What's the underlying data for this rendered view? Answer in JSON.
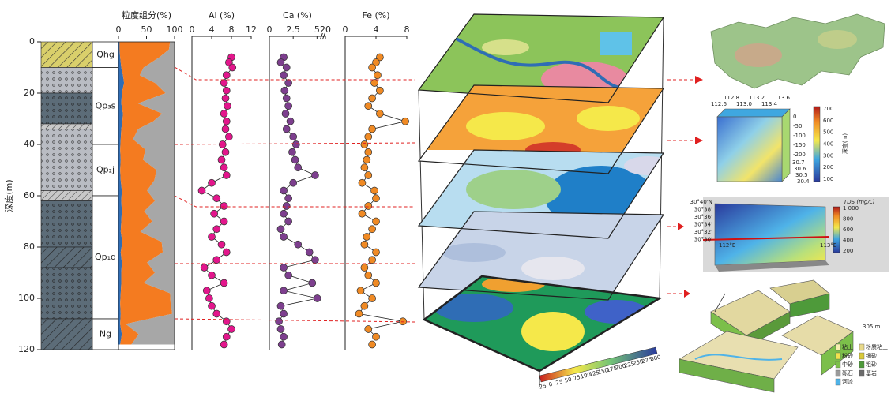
{
  "chart_data": [
    {
      "type": "lithology",
      "ylabel": "深度(m)",
      "ylim": [
        0,
        120
      ],
      "yticks": [
        0,
        20,
        40,
        60,
        80,
        100,
        120
      ],
      "layers": [
        {
          "top": 0,
          "bottom": 10,
          "fill": "hatch-yellow"
        },
        {
          "top": 10,
          "bottom": 20,
          "fill": "dots-light"
        },
        {
          "top": 20,
          "bottom": 32,
          "fill": "dots-dark"
        },
        {
          "top": 32,
          "bottom": 34,
          "fill": "hatch-grey"
        },
        {
          "top": 34,
          "bottom": 58,
          "fill": "dots-light"
        },
        {
          "top": 58,
          "bottom": 62,
          "fill": "hatch-grey"
        },
        {
          "top": 62,
          "bottom": 80,
          "fill": "dots-dark"
        },
        {
          "top": 80,
          "bottom": 88,
          "fill": "hatch-dark"
        },
        {
          "top": 88,
          "bottom": 108,
          "fill": "dots-dark"
        },
        {
          "top": 108,
          "bottom": 120,
          "fill": "hatch-dark"
        }
      ],
      "units": [
        {
          "label": "Qhg",
          "top": 0,
          "bottom": 10
        },
        {
          "label": "Qp₃s",
          "top": 10,
          "bottom": 40
        },
        {
          "label": "Qp₂j",
          "top": 40,
          "bottom": 60
        },
        {
          "label": "Qp₁d",
          "top": 60,
          "bottom": 108
        },
        {
          "label": "Ng",
          "top": 108,
          "bottom": 120
        }
      ]
    },
    {
      "type": "stacked-area",
      "title": "粒度组分(%)",
      "xlim": [
        0,
        100
      ],
      "xticks": [
        0,
        50,
        100
      ],
      "depth": [
        0,
        3,
        6,
        10,
        13,
        16,
        20,
        24,
        28,
        31,
        34,
        38,
        42,
        46,
        50,
        54,
        58,
        62,
        66,
        70,
        74,
        78,
        82,
        86,
        90,
        94,
        98,
        102,
        106,
        110,
        114,
        118
      ],
      "series": [
        {
          "color": "#2f6db5",
          "values": [
            2,
            2,
            3,
            5,
            8,
            10,
            6,
            5,
            8,
            7,
            5,
            4,
            3,
            4,
            3,
            4,
            6,
            5,
            6,
            5,
            4,
            7,
            4,
            6,
            5,
            5,
            4,
            3,
            4,
            3,
            6,
            3
          ]
        },
        {
          "color": "#f47b20",
          "values": [
            90,
            88,
            70,
            40,
            30,
            55,
            78,
            30,
            70,
            55,
            30,
            22,
            45,
            40,
            65,
            60,
            45,
            60,
            40,
            55,
            35,
            70,
            75,
            45,
            60,
            40,
            88,
            90,
            92,
            10,
            30,
            20
          ]
        },
        {
          "color": "#a7a7a7",
          "values": [
            8,
            10,
            27,
            55,
            62,
            35,
            16,
            65,
            22,
            38,
            65,
            74,
            52,
            56,
            32,
            36,
            49,
            35,
            54,
            40,
            61,
            23,
            21,
            49,
            35,
            55,
            8,
            7,
            4,
            87,
            64,
            77
          ]
        }
      ]
    },
    {
      "type": "profile",
      "title": "Al (%)",
      "xlim": [
        0,
        12
      ],
      "xticks": [
        0,
        4,
        8,
        12
      ],
      "color": "#e3168c",
      "depth": [
        6,
        8,
        10,
        13,
        16,
        19,
        22,
        25,
        28,
        31,
        34,
        37,
        40,
        43,
        46,
        49,
        52,
        55,
        58,
        61,
        64,
        67,
        70,
        73,
        76,
        79,
        82,
        85,
        88,
        91,
        94,
        97,
        100,
        103,
        106,
        109,
        112,
        115,
        118
      ],
      "values": [
        8,
        7.5,
        8.2,
        7,
        6.5,
        7,
        6.8,
        7.2,
        6.5,
        7,
        6.8,
        7.5,
        6.2,
        6.8,
        6,
        6.5,
        7,
        4,
        2,
        5,
        6.5,
        4.5,
        6.5,
        5,
        4,
        6,
        7,
        5,
        2.5,
        4,
        6.5,
        3,
        3.5,
        4,
        5,
        7,
        8,
        7,
        6.5
      ]
    },
    {
      "type": "profile",
      "title": "Ca (%)",
      "xlim": [
        0,
        20
      ],
      "xticks": [
        0,
        2.5,
        5,
        20
      ],
      "broken_axis": true,
      "color": "#7d3f8e",
      "depth": [
        6,
        8,
        10,
        13,
        16,
        19,
        22,
        25,
        28,
        31,
        34,
        37,
        40,
        43,
        46,
        49,
        52,
        55,
        58,
        61,
        64,
        67,
        70,
        73,
        76,
        79,
        82,
        85,
        88,
        91,
        94,
        97,
        100,
        103,
        106,
        109,
        112,
        115,
        118
      ],
      "values": [
        1.5,
        1.2,
        1.8,
        1.5,
        2,
        1.6,
        1.8,
        2,
        1.7,
        2.2,
        1.8,
        2.5,
        2.8,
        2.4,
        2.7,
        3,
        4.8,
        2.5,
        1.5,
        2,
        1.8,
        1.5,
        2,
        1.2,
        1.5,
        3,
        4.2,
        4.8,
        1.5,
        2,
        4.5,
        1.5,
        5.5,
        1.2,
        1.5,
        1,
        1.2,
        1.5,
        1.3
      ]
    },
    {
      "type": "profile",
      "title": "Fe (%)",
      "xlim": [
        0,
        8
      ],
      "xticks": [
        0,
        4,
        8
      ],
      "color": "#f08a24",
      "depth": [
        6,
        8,
        10,
        13,
        16,
        19,
        22,
        25,
        28,
        31,
        34,
        37,
        40,
        43,
        46,
        49,
        52,
        55,
        58,
        61,
        64,
        67,
        70,
        73,
        76,
        79,
        82,
        85,
        88,
        91,
        94,
        97,
        100,
        103,
        106,
        109,
        112,
        115,
        118
      ],
      "values": [
        4.5,
        4,
        3.5,
        4.2,
        3.8,
        4.5,
        3.5,
        3,
        4.5,
        7.8,
        3.5,
        3,
        2.5,
        3,
        2.8,
        2.5,
        3,
        2.2,
        3.8,
        4,
        3,
        2.2,
        4,
        3.5,
        2.8,
        2.5,
        4,
        3.5,
        2.5,
        3,
        4,
        2,
        3.5,
        2.5,
        1.8,
        7.5,
        3,
        4,
        3.5
      ]
    }
  ],
  "panels": {
    "stack": {
      "colorbar": [
        "-25",
        "0",
        "25",
        "50",
        "75",
        "100",
        "125",
        "150",
        "175",
        "200",
        "225",
        "250",
        "275",
        "300"
      ]
    },
    "depth_cube": {
      "lon": [
        "112.6",
        "112.8",
        "113.0",
        "113.2",
        "113.4",
        "113.6"
      ],
      "lat": [
        "30.7",
        "30.6",
        "30.5",
        "30.4"
      ],
      "z": [
        "0",
        "-50",
        "-100",
        "-150",
        "-200"
      ],
      "colorbar": [
        "700",
        "600",
        "500",
        "400",
        "300",
        "200",
        "100"
      ],
      "colorbar_title": "深度(m)"
    },
    "tds": {
      "title": "TDS (mg/L)",
      "colorbar": [
        "1 000",
        "800",
        "600",
        "400",
        "200"
      ],
      "lat": [
        "30°40'N",
        "30°38'",
        "30°36'",
        "30°34'",
        "30°32'",
        "30°30'"
      ],
      "lon": [
        "112°E",
        "113°E"
      ]
    },
    "blocks": {
      "scale": "305 m",
      "legend": [
        "粘土",
        "粉质粘土",
        "粉砂",
        "细砂",
        "中砂",
        "粗砂",
        "砾石",
        "基岩",
        "河流"
      ],
      "colors": [
        "#f6eeb0",
        "#e8d98a",
        "#f2e24e",
        "#d9c93a",
        "#7cbf4a",
        "#4e9a3a",
        "#9a9a9a",
        "#6b6b6b",
        "#4fb3e8"
      ]
    }
  }
}
